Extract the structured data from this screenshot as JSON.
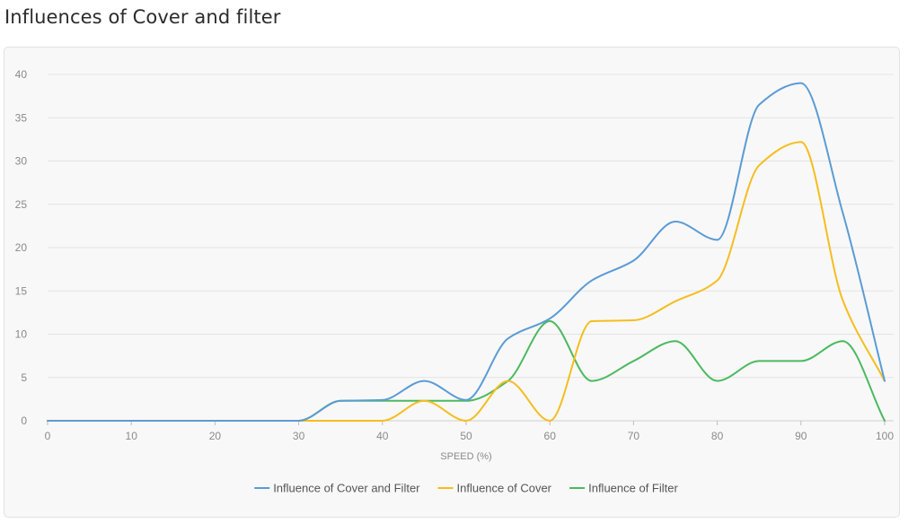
{
  "page": {
    "title": "Influences of Cover and filter"
  },
  "chart_data": {
    "type": "line",
    "title": "",
    "xlabel": "SPEED (%)",
    "ylabel": "",
    "xlim": [
      0,
      100
    ],
    "ylim": [
      0,
      40
    ],
    "xticks": [
      0,
      10,
      20,
      30,
      40,
      50,
      60,
      70,
      80,
      90,
      100
    ],
    "yticks": [
      0,
      5,
      10,
      15,
      20,
      25,
      30,
      35,
      40
    ],
    "grid": "horizontal",
    "legend_position": "bottom-center",
    "x": [
      0,
      5,
      10,
      15,
      20,
      25,
      30,
      35,
      40,
      45,
      50,
      55,
      60,
      65,
      70,
      75,
      80,
      85,
      90,
      95,
      100
    ],
    "series": [
      {
        "name": "Influence of Cover and Filter",
        "color": "#5b9bd5",
        "values": [
          0,
          0,
          0,
          0,
          0,
          0,
          0,
          2.3,
          2.4,
          4.6,
          2.4,
          9.5,
          11.8,
          16.2,
          18.5,
          23,
          20.9,
          36.5,
          39,
          24,
          4.6
        ]
      },
      {
        "name": "Influence of Cover",
        "color": "#f5bd1f",
        "values": [
          0,
          0,
          0,
          0,
          0,
          0,
          0,
          0,
          0,
          2.3,
          0,
          4.6,
          0,
          11.5,
          11.6,
          13.8,
          16.2,
          29.5,
          32.2,
          13.9,
          4.6
        ]
      },
      {
        "name": "Influence of Filter",
        "color": "#4cb960",
        "values": [
          0,
          0,
          0,
          0,
          0,
          0,
          0,
          2.3,
          2.3,
          2.3,
          2.3,
          4.6,
          11.5,
          4.6,
          6.9,
          9.2,
          4.6,
          6.9,
          6.9,
          9.2,
          0
        ]
      }
    ]
  }
}
